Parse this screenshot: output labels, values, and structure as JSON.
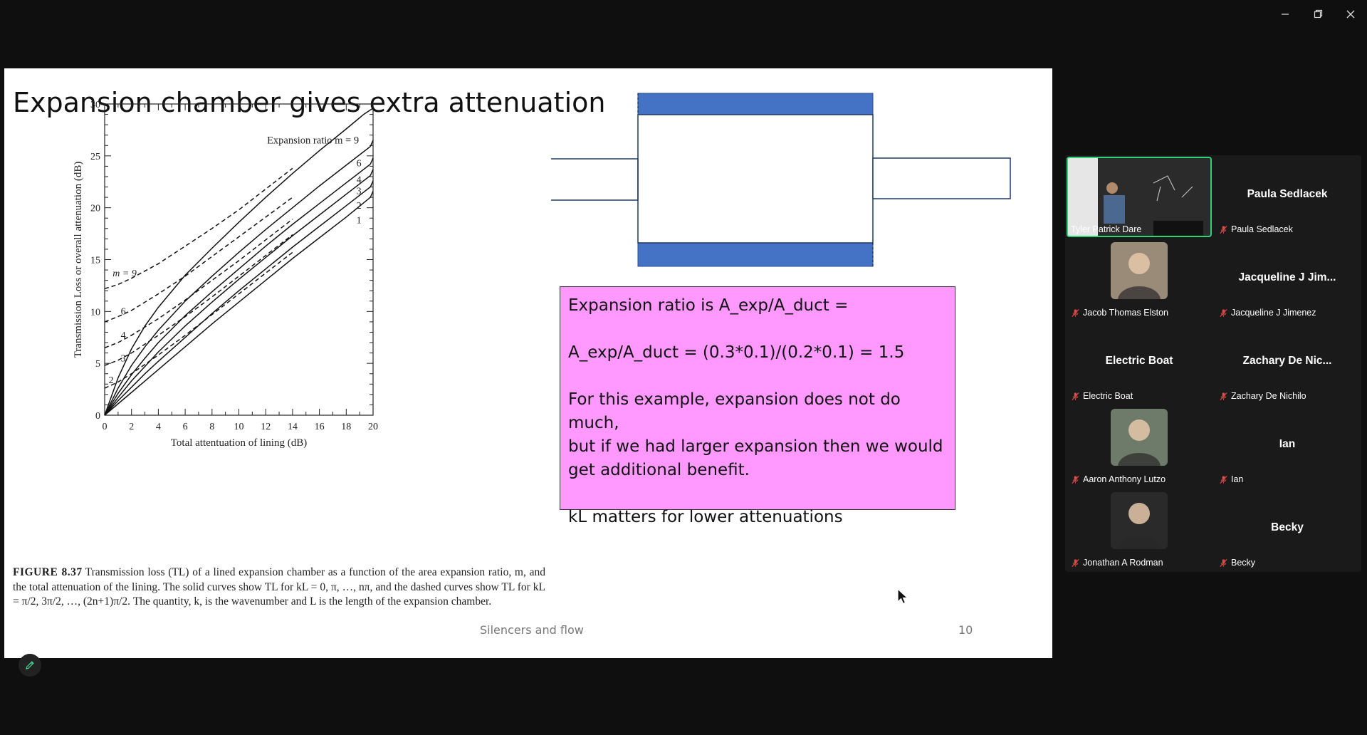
{
  "window": {
    "minimize_icon": "minimize-icon",
    "maximize_icon": "restore-icon",
    "close_icon": "close-icon"
  },
  "slide": {
    "title": "Expansion chamber gives extra attenuation",
    "footer_title": "Silencers and flow",
    "page_number": "10",
    "caption_label": "FIGURE 8.37",
    "caption_text": "Transmission loss (TL) of a lined expansion chamber as a function of the area expansion ratio, m, and the total attenuation of the lining. The solid curves show TL for kL = 0, π, …, nπ, and the dashed curves show TL for kL = π/2, 3π/2, …, (2n+1)π/2. The quantity, k, is the wavenumber and L is the length of the expansion chamber.",
    "note_lines": [
      "Expansion ratio is A_exp/A_duct =",
      "",
      "A_exp/A_duct = (0.3*0.1)/(0.2*0.1) = 1.5",
      "",
      "For this example, expansion does not do much,",
      "but if we had larger expansion then we would",
      "get additional benefit.",
      "",
      "kL matters for lower attenuations"
    ],
    "chamber_colors": {
      "lining": "#4472c4",
      "outline": "#1f3864"
    }
  },
  "chart_data": {
    "type": "line",
    "xlabel": "Total attentuation of lining (dB)",
    "ylabel": "Transmission Loss or overall attenuation (dB)",
    "xlim": [
      0,
      20
    ],
    "ylim": [
      0,
      30
    ],
    "xticks": [
      0,
      2,
      4,
      6,
      8,
      10,
      12,
      14,
      16,
      18,
      20
    ],
    "yticks": [
      0,
      5,
      10,
      15,
      20,
      25,
      30
    ],
    "annotation": "Expansion ratio m = 9",
    "solid_series": [
      {
        "name": "9",
        "x": [
          0,
          1,
          2,
          3,
          4,
          6,
          8,
          10,
          12,
          14,
          16,
          18,
          19.3
        ],
        "y": [
          0,
          3.6,
          6.4,
          8.6,
          10.4,
          13.5,
          16.1,
          18.6,
          21.0,
          23.3,
          25.5,
          27.6,
          29.0
        ]
      },
      {
        "name": "6",
        "x": [
          0,
          1,
          2,
          3,
          4,
          6,
          8,
          10,
          12,
          14,
          16,
          18,
          19.8
        ],
        "y": [
          0,
          2.6,
          4.8,
          6.6,
          8.2,
          11.0,
          13.4,
          15.7,
          17.9,
          20.0,
          22.1,
          24.1,
          25.9
        ]
      },
      {
        "name": "4",
        "x": [
          0,
          1,
          2,
          3,
          4,
          6,
          8,
          10,
          12,
          14,
          16,
          18,
          19.8
        ],
        "y": [
          0,
          2.1,
          3.9,
          5.5,
          7.0,
          9.6,
          11.9,
          14.1,
          16.3,
          18.4,
          20.4,
          22.4,
          24.2
        ]
      },
      {
        "name": "3",
        "x": [
          0,
          1,
          2,
          3,
          4,
          6,
          8,
          10,
          12,
          14,
          16,
          18,
          19.8
        ],
        "y": [
          0,
          1.7,
          3.3,
          4.7,
          6.1,
          8.6,
          10.9,
          13.1,
          15.2,
          17.3,
          19.3,
          21.3,
          23.1
        ]
      },
      {
        "name": "2",
        "x": [
          0,
          1,
          2,
          3,
          4,
          6,
          8,
          10,
          12,
          14,
          16,
          18,
          19.8
        ],
        "y": [
          0,
          1.4,
          2.7,
          4.0,
          5.2,
          7.5,
          9.8,
          12.0,
          14.1,
          16.2,
          18.2,
          20.2,
          22.0
        ]
      },
      {
        "name": "1",
        "x": [
          0,
          1,
          2,
          3,
          4,
          6,
          8,
          10,
          12,
          14,
          16,
          18,
          19.8
        ],
        "y": [
          0,
          1.1,
          2.2,
          3.3,
          4.4,
          6.6,
          8.8,
          10.9,
          13.0,
          15.1,
          17.1,
          19.1,
          21.0
        ]
      }
    ],
    "dashed_series": [
      {
        "name": "m = 9",
        "x": [
          0,
          1,
          2,
          4,
          6,
          8,
          10,
          12,
          14
        ],
        "y": [
          12.2,
          12.6,
          13.2,
          14.6,
          16.3,
          18.0,
          19.8,
          21.8,
          23.8
        ]
      },
      {
        "name": "6",
        "x": [
          0,
          1,
          2,
          4,
          6,
          8,
          10,
          12,
          14
        ],
        "y": [
          9.0,
          9.5,
          10.1,
          11.7,
          13.4,
          15.3,
          17.2,
          19.1,
          21.0
        ]
      },
      {
        "name": "4",
        "x": [
          0,
          1,
          2,
          4,
          6,
          8,
          10,
          12,
          14
        ],
        "y": [
          6.5,
          7.0,
          7.7,
          9.3,
          11.1,
          13.0,
          14.9,
          16.9,
          18.9
        ]
      },
      {
        "name": "3",
        "x": [
          0,
          1,
          2,
          4,
          6,
          8,
          10,
          12,
          14
        ],
        "y": [
          4.8,
          5.3,
          6.0,
          7.7,
          9.5,
          11.4,
          13.4,
          15.4,
          17.4
        ]
      },
      {
        "name": "2",
        "x": [
          0,
          1,
          2,
          4,
          6,
          8,
          10,
          12,
          14
        ],
        "y": [
          2.6,
          3.2,
          4.0,
          5.8,
          7.7,
          9.7,
          11.7,
          13.7,
          15.7
        ]
      }
    ]
  },
  "participants": [
    {
      "name": "Tyler Patrick Dare",
      "display": "",
      "muted": false,
      "type": "video",
      "active": true
    },
    {
      "name": "Paula Sedlacek",
      "display": "Paula Sedlacek",
      "muted": true,
      "type": "name"
    },
    {
      "name": "Jacob Thomas Elston",
      "display": "",
      "muted": true,
      "type": "photo",
      "tone": "#9a8a78"
    },
    {
      "name": "Jacqueline J Jimenez",
      "display": "Jacqueline J Jim...",
      "muted": true,
      "type": "name"
    },
    {
      "name": "Electric Boat",
      "display": "Electric Boat",
      "muted": true,
      "type": "name"
    },
    {
      "name": "Zachary De Nichilo",
      "display": "Zachary De Nic...",
      "muted": true,
      "type": "name"
    },
    {
      "name": "Aaron Anthony Lutzo",
      "display": "",
      "muted": true,
      "type": "photo",
      "tone": "#6f7b6a"
    },
    {
      "name": "Ian",
      "display": "Ian",
      "muted": true,
      "type": "name"
    },
    {
      "name": "Jonathan A Rodman",
      "display": "",
      "muted": true,
      "type": "photo",
      "tone": "#2a2a2a"
    },
    {
      "name": "Becky",
      "display": "Becky",
      "muted": true,
      "type": "name"
    }
  ]
}
